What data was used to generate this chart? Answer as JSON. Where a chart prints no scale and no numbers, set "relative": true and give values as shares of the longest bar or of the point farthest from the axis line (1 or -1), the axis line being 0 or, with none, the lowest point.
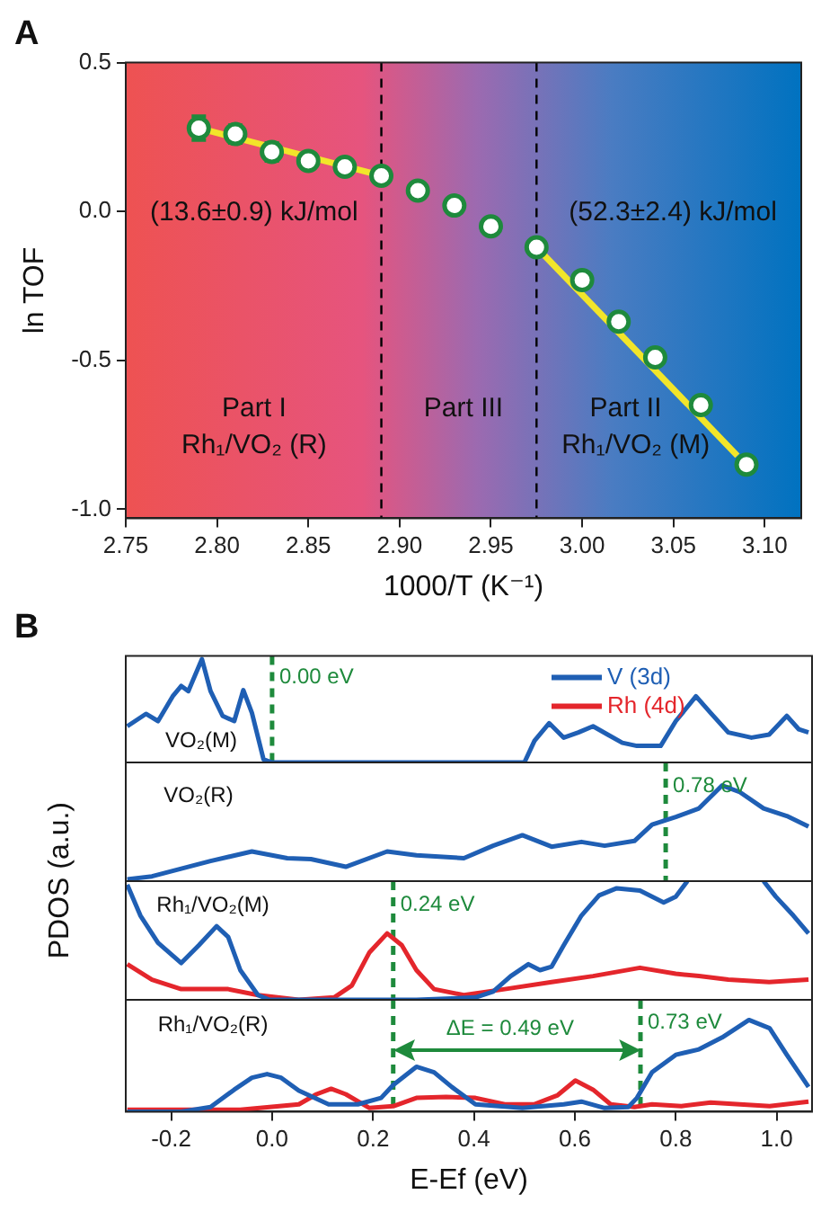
{
  "chart_data": [
    {
      "type": "scatter",
      "title": "A",
      "xlabel": "1000/T (K⁻¹)",
      "ylabel": "ln TOF",
      "xlim": [
        2.75,
        3.12
      ],
      "xticks": [
        2.75,
        {
          "value": 2.8,
          "label": "2.80"
        },
        2.85,
        {
          "value": 2.9,
          "label": "2.90"
        },
        2.95,
        {
          "value": 3.0,
          "label": "3.00"
        },
        3.05,
        {
          "value": 3.1,
          "label": "3.10"
        }
      ],
      "ylim": [
        -1.03,
        0.5
      ],
      "yticks": [
        {
          "value": -1.0,
          "label": "-1.0"
        },
        -0.5,
        {
          "value": 0,
          "label": "0.0"
        },
        0.5
      ],
      "grid": false,
      "legend": false,
      "series": [
        {
          "marker": "circle",
          "color": "#1e8a3c",
          "x": [
            2.79,
            2.81,
            2.83,
            2.85,
            2.87,
            2.89,
            2.91,
            2.93,
            2.95,
            2.975,
            3.0,
            3.02,
            3.04,
            3.065,
            3.09
          ],
          "values": [
            0.28,
            0.26,
            0.2,
            0.17,
            0.15,
            0.12,
            0.07,
            0.02,
            -0.05,
            -0.12,
            -0.23,
            -0.37,
            -0.49,
            -0.65,
            -0.85
          ],
          "errors": [
            0.04,
            0.03,
            0.03,
            0.025,
            null,
            null,
            null,
            null,
            null,
            null,
            null,
            null,
            null,
            null,
            null
          ]
        },
        {
          "type": "line",
          "color": "#f2e52a",
          "x": [
            2.79,
            2.89
          ],
          "values": [
            0.28,
            0.12
          ]
        },
        {
          "type": "line",
          "color": "#f2e52a",
          "x": [
            2.975,
            3.085
          ],
          "values": [
            -0.12,
            -0.82
          ]
        }
      ],
      "ref_lines": [
        {
          "axis": "x",
          "value": 2.89,
          "color": "#000000",
          "line_style": "dashed"
        },
        {
          "axis": "x",
          "value": 2.975,
          "color": "#000000",
          "line_style": "dashed"
        }
      ],
      "annotations": [
        "(13.6±0.9) kJ/mol",
        "(52.3±2.4) kJ/mol",
        "Part I",
        "Rh₁/VO₂ (R)",
        "Part III",
        "Part II",
        "Rh₁/VO₂ (M)"
      ]
    },
    {
      "type": "line",
      "title": "B",
      "ylabel": "PDOS (a.u.)",
      "relative": true,
      "xlim": [
        -0.29,
        1.07
      ],
      "tick_labels": false,
      "legend": "top right",
      "series": [
        {
          "name": "V (3d)",
          "color": "#1f5fb4",
          "x": [
            -0.287,
            -0.25,
            -0.226,
            -0.197,
            -0.18,
            -0.166,
            -0.139,
            -0.122,
            -0.098,
            -0.075,
            -0.057,
            -0.04,
            -0.017,
            0.0,
            0.5,
            0.52,
            0.549,
            0.578,
            0.607,
            0.636,
            0.665,
            0.694,
            0.723,
            0.77,
            0.8,
            0.84,
            0.869,
            0.904,
            0.95,
            0.985,
            1.02,
            1.044,
            1.063
          ],
          "values": [
            0.35,
            0.47,
            0.4,
            0.64,
            0.74,
            0.69,
            1.0,
            0.69,
            0.45,
            0.4,
            0.7,
            0.48,
            0.03,
            0,
            0,
            0.21,
            0.38,
            0.24,
            0.29,
            0.35,
            0.27,
            0.19,
            0.16,
            0.16,
            0.4,
            0.64,
            0.48,
            0.29,
            0.24,
            0.27,
            0.45,
            0.32,
            0.29
          ]
        },
        {
          "name": "Rh (4d)",
          "color": "#e4262c"
        }
      ],
      "ref_lines": [
        {
          "axis": "x",
          "value": 0.0,
          "label": "0.00 eV",
          "color": "#1e8a3c",
          "line_style": "dashed"
        }
      ],
      "annotations": [
        "VO₂(M)"
      ]
    },
    {
      "type": "line",
      "relative": true,
      "xlim": [
        -0.29,
        1.07
      ],
      "tick_labels": false,
      "series": [
        {
          "color": "#1f5fb4",
          "x": [
            -0.287,
            -0.238,
            -0.18,
            -0.122,
            -0.04,
            0.03,
            0.077,
            0.146,
            0.228,
            0.286,
            0.38,
            0.438,
            0.496,
            0.554,
            0.613,
            0.659,
            0.718,
            0.753,
            0.8,
            0.846,
            0.892,
            0.927,
            0.974,
            1.02,
            1.063
          ],
          "values": [
            0.02,
            0.05,
            0.13,
            0.21,
            0.31,
            0.24,
            0.23,
            0.15,
            0.31,
            0.27,
            0.24,
            0.37,
            0.48,
            0.36,
            0.41,
            0.37,
            0.42,
            0.59,
            0.67,
            0.76,
            1.0,
            0.93,
            0.76,
            0.68,
            0.57
          ]
        }
      ],
      "ref_lines": [
        {
          "axis": "x",
          "value": 0.78,
          "label": "0.78 eV",
          "color": "#1e8a3c",
          "line_style": "dashed"
        }
      ],
      "annotations": [
        "VO₂(R)"
      ]
    },
    {
      "type": "line",
      "relative": true,
      "xlim": [
        -0.29,
        1.07
      ],
      "tick_labels": false,
      "series": [
        {
          "color": "#1f5fb4",
          "x": [
            -0.287,
            -0.261,
            -0.226,
            -0.18,
            -0.145,
            -0.11,
            -0.087,
            -0.063,
            -0.028,
            -0.005,
            0.053,
            0.17,
            0.286,
            0.403,
            0.438,
            0.473,
            0.508,
            0.531,
            0.554,
            0.578,
            0.613,
            0.648,
            0.683,
            0.729,
            0.776,
            0.8,
            0.823,
            0.9,
            0.974,
            0.998,
            1.033,
            1.063
          ],
          "values": [
            0.97,
            0.71,
            0.48,
            0.31,
            0.46,
            0.62,
            0.53,
            0.25,
            0.04,
            0,
            0,
            0,
            0,
            0.02,
            0.07,
            0.2,
            0.3,
            0.25,
            0.28,
            0.46,
            0.71,
            0.88,
            0.94,
            0.92,
            0.82,
            0.87,
            1.0,
            null,
            1.0,
            0.87,
            0.71,
            0.56
          ]
        },
        {
          "color": "#e4262c",
          "x": [
            -0.287,
            -0.238,
            -0.18,
            -0.087,
            -0.028,
            0.053,
            0.123,
            0.158,
            0.193,
            0.228,
            0.257,
            0.286,
            0.321,
            0.38,
            0.461,
            0.554,
            0.636,
            0.729,
            0.8,
            0.846,
            0.904,
            0.985,
            1.063
          ],
          "values": [
            0.3,
            0.17,
            0.09,
            0.09,
            0.04,
            0,
            0.02,
            0.12,
            0.4,
            0.56,
            0.46,
            0.25,
            0.09,
            0.04,
            0.09,
            0.15,
            0.2,
            0.27,
            0.22,
            0.2,
            0.17,
            0.15,
            0.17
          ]
        }
      ],
      "ref_lines": [
        {
          "axis": "x",
          "value": 0.24,
          "label": "0.24 eV",
          "color": "#1e8a3c",
          "line_style": "dashed"
        }
      ],
      "annotations": [
        "Rh₁/VO₂(M)"
      ]
    },
    {
      "type": "line",
      "relative": true,
      "xlabel": "E-Ef (eV)",
      "xlim": [
        -0.29,
        1.07
      ],
      "xticks": [
        -0.2,
        {
          "value": 0,
          "label": "0.0"
        },
        0.2,
        0.4,
        0.6,
        0.8,
        {
          "value": 1,
          "label": "1.0"
        }
      ],
      "tick_labels": "x",
      "series": [
        {
          "color": "#1f5fb4",
          "x": [
            -0.287,
            -0.18,
            -0.122,
            -0.075,
            -0.04,
            -0.01,
            0.018,
            0.053,
            0.112,
            0.17,
            0.216,
            0.24,
            0.286,
            0.321,
            0.356,
            0.403,
            0.496,
            0.578,
            0.613,
            0.659,
            0.706,
            0.723,
            0.753,
            0.8,
            0.846,
            0.892,
            0.945,
            0.986,
            1.02,
            1.063
          ],
          "values": [
            0,
            0,
            0.05,
            0.24,
            0.37,
            0.41,
            0.37,
            0.23,
            0.08,
            0.08,
            0.15,
            0.29,
            0.49,
            0.43,
            0.27,
            0.08,
            0.04,
            0.08,
            0.11,
            0.04,
            0.05,
            0.15,
            0.43,
            0.62,
            0.68,
            0.81,
            1.0,
            0.91,
            0.62,
            0.27
          ]
        },
        {
          "color": "#e4262c",
          "x": [
            -0.287,
            -0.063,
            0.053,
            0.088,
            0.117,
            0.146,
            0.193,
            0.24,
            0.286,
            0.345,
            0.403,
            0.461,
            0.519,
            0.566,
            0.601,
            0.636,
            0.671,
            0.718,
            0.753,
            0.811,
            0.869,
            0.927,
            0.986,
            1.063
          ],
          "values": [
            0.02,
            0.02,
            0.08,
            0.19,
            0.25,
            0.19,
            0.04,
            0.06,
            0.15,
            0.16,
            0.15,
            0.08,
            0.08,
            0.18,
            0.34,
            0.24,
            0.08,
            0.05,
            0.08,
            0.06,
            0.1,
            0.08,
            0.06,
            0.11
          ]
        }
      ],
      "ref_lines": [
        {
          "axis": "x",
          "value": 0.24,
          "label": null,
          "color": "#1e8a3c",
          "line_style": "dashed"
        },
        {
          "axis": "x",
          "value": 0.73,
          "label": "0.73 eV",
          "color": "#1e8a3c",
          "line_style": "dashed"
        }
      ],
      "annotations": [
        "Rh₁/VO₂(R)",
        "ΔE = 0.49 eV"
      ]
    }
  ]
}
